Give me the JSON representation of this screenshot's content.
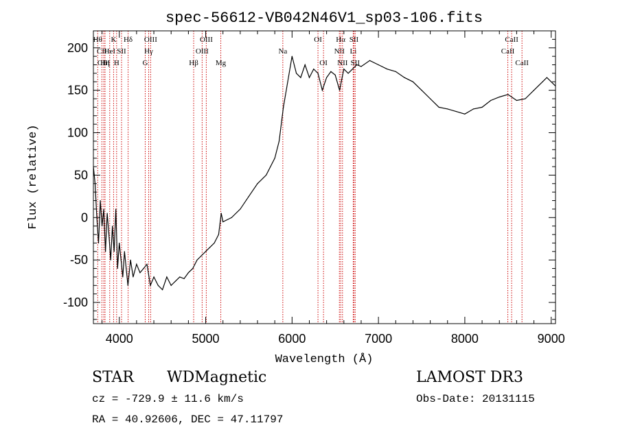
{
  "chart_data": {
    "type": "line",
    "title": "spec-56612-VB042N46V1_sp03-106.fits",
    "xlabel": "Wavelength (Å)",
    "ylabel": "Flux (relative)",
    "xlim": [
      3700,
      9050
    ],
    "ylim": [
      -125,
      220
    ],
    "x_ticks": [
      4000,
      5000,
      6000,
      7000,
      8000,
      9000
    ],
    "y_ticks": [
      -100,
      -50,
      0,
      50,
      100,
      150,
      200
    ],
    "grid": false,
    "line_color": "#000000",
    "marker_color": "#cc0000",
    "series": [
      {
        "name": "flux",
        "points": [
          [
            3700,
            60
          ],
          [
            3720,
            40
          ],
          [
            3740,
            0
          ],
          [
            3760,
            -30
          ],
          [
            3780,
            20
          ],
          [
            3800,
            -10
          ],
          [
            3820,
            10
          ],
          [
            3840,
            -40
          ],
          [
            3860,
            5
          ],
          [
            3880,
            -20
          ],
          [
            3900,
            -50
          ],
          [
            3920,
            -10
          ],
          [
            3940,
            -40
          ],
          [
            3960,
            10
          ],
          [
            3980,
            -60
          ],
          [
            4000,
            -30
          ],
          [
            4020,
            -50
          ],
          [
            4040,
            -70
          ],
          [
            4060,
            -40
          ],
          [
            4080,
            -60
          ],
          [
            4100,
            -80
          ],
          [
            4130,
            -50
          ],
          [
            4160,
            -70
          ],
          [
            4200,
            -55
          ],
          [
            4240,
            -65
          ],
          [
            4280,
            -60
          ],
          [
            4320,
            -55
          ],
          [
            4360,
            -80
          ],
          [
            4400,
            -70
          ],
          [
            4450,
            -80
          ],
          [
            4500,
            -85
          ],
          [
            4550,
            -70
          ],
          [
            4600,
            -80
          ],
          [
            4650,
            -75
          ],
          [
            4700,
            -70
          ],
          [
            4750,
            -72
          ],
          [
            4800,
            -65
          ],
          [
            4850,
            -60
          ],
          [
            4900,
            -50
          ],
          [
            4950,
            -45
          ],
          [
            5000,
            -40
          ],
          [
            5050,
            -35
          ],
          [
            5100,
            -30
          ],
          [
            5150,
            -20
          ],
          [
            5180,
            5
          ],
          [
            5200,
            -5
          ],
          [
            5300,
            0
          ],
          [
            5400,
            10
          ],
          [
            5500,
            25
          ],
          [
            5600,
            40
          ],
          [
            5700,
            50
          ],
          [
            5800,
            70
          ],
          [
            5850,
            90
          ],
          [
            5900,
            130
          ],
          [
            5950,
            160
          ],
          [
            6000,
            190
          ],
          [
            6050,
            170
          ],
          [
            6100,
            165
          ],
          [
            6150,
            180
          ],
          [
            6200,
            165
          ],
          [
            6250,
            175
          ],
          [
            6300,
            170
          ],
          [
            6350,
            150
          ],
          [
            6400,
            165
          ],
          [
            6450,
            172
          ],
          [
            6500,
            168
          ],
          [
            6550,
            150
          ],
          [
            6600,
            175
          ],
          [
            6650,
            170
          ],
          [
            6700,
            175
          ],
          [
            6750,
            180
          ],
          [
            6800,
            178
          ],
          [
            6900,
            185
          ],
          [
            7000,
            180
          ],
          [
            7100,
            175
          ],
          [
            7200,
            172
          ],
          [
            7300,
            165
          ],
          [
            7400,
            160
          ],
          [
            7500,
            150
          ],
          [
            7600,
            140
          ],
          [
            7700,
            130
          ],
          [
            7800,
            128
          ],
          [
            7900,
            125
          ],
          [
            8000,
            122
          ],
          [
            8100,
            128
          ],
          [
            8200,
            130
          ],
          [
            8300,
            138
          ],
          [
            8400,
            142
          ],
          [
            8500,
            145
          ],
          [
            8600,
            138
          ],
          [
            8700,
            140
          ],
          [
            8800,
            150
          ],
          [
            8850,
            155
          ],
          [
            8900,
            160
          ],
          [
            8950,
            165
          ],
          [
            9000,
            160
          ],
          [
            9050,
            155
          ]
        ]
      }
    ],
    "line_markers": [
      {
        "wavelength": 3750,
        "label": "Hθ",
        "row": 0
      },
      {
        "wavelength": 3798,
        "label": "CII",
        "row": 1
      },
      {
        "wavelength": 3820,
        "label": "CIII",
        "row": 2
      },
      {
        "wavelength": 3835,
        "label": "Hη",
        "row": 2
      },
      {
        "wavelength": 3889,
        "label": "HeI",
        "row": 1
      },
      {
        "wavelength": 3934,
        "label": "K",
        "row": 0
      },
      {
        "wavelength": 3969,
        "label": "H",
        "row": 2
      },
      {
        "wavelength": 4026,
        "label": "SII",
        "row": 1
      },
      {
        "wavelength": 4102,
        "label": "Hδ",
        "row": 0
      },
      {
        "wavelength": 4300,
        "label": "G",
        "row": 2
      },
      {
        "wavelength": 4340,
        "label": "Hγ",
        "row": 1
      },
      {
        "wavelength": 4363,
        "label": "OIII",
        "row": 0
      },
      {
        "wavelength": 4861,
        "label": "Hβ",
        "row": 2
      },
      {
        "wavelength": 4959,
        "label": "OIII",
        "row": 1
      },
      {
        "wavelength": 5007,
        "label": "OIII",
        "row": 0
      },
      {
        "wavelength": 5175,
        "label": "Mg",
        "row": 2
      },
      {
        "wavelength": 5893,
        "label": "Na",
        "row": 1
      },
      {
        "wavelength": 6300,
        "label": "OI",
        "row": 0
      },
      {
        "wavelength": 6364,
        "label": "OI",
        "row": 2
      },
      {
        "wavelength": 6548,
        "label": "NII",
        "row": 1
      },
      {
        "wavelength": 6563,
        "label": "Hα",
        "row": 0
      },
      {
        "wavelength": 6584,
        "label": "NII",
        "row": 2
      },
      {
        "wavelength": 6708,
        "label": "Li",
        "row": 1
      },
      {
        "wavelength": 6717,
        "label": "SII",
        "row": 0
      },
      {
        "wavelength": 6731,
        "label": "SII",
        "row": 2
      },
      {
        "wavelength": 8498,
        "label": "CaII",
        "row": 1
      },
      {
        "wavelength": 8542,
        "label": "CaII",
        "row": 0
      },
      {
        "wavelength": 8662,
        "label": "CaII",
        "row": 2
      }
    ]
  },
  "info": {
    "class_label": "STAR",
    "subclass_label": "WDMagnetic",
    "survey_label": "LAMOST DR3",
    "cz_text": "cz = -729.9 ± 11.6 km/s",
    "obs_date_text": "Obs-Date: 20131115",
    "radec_text": "RA =  40.92606, DEC =  47.11797"
  }
}
